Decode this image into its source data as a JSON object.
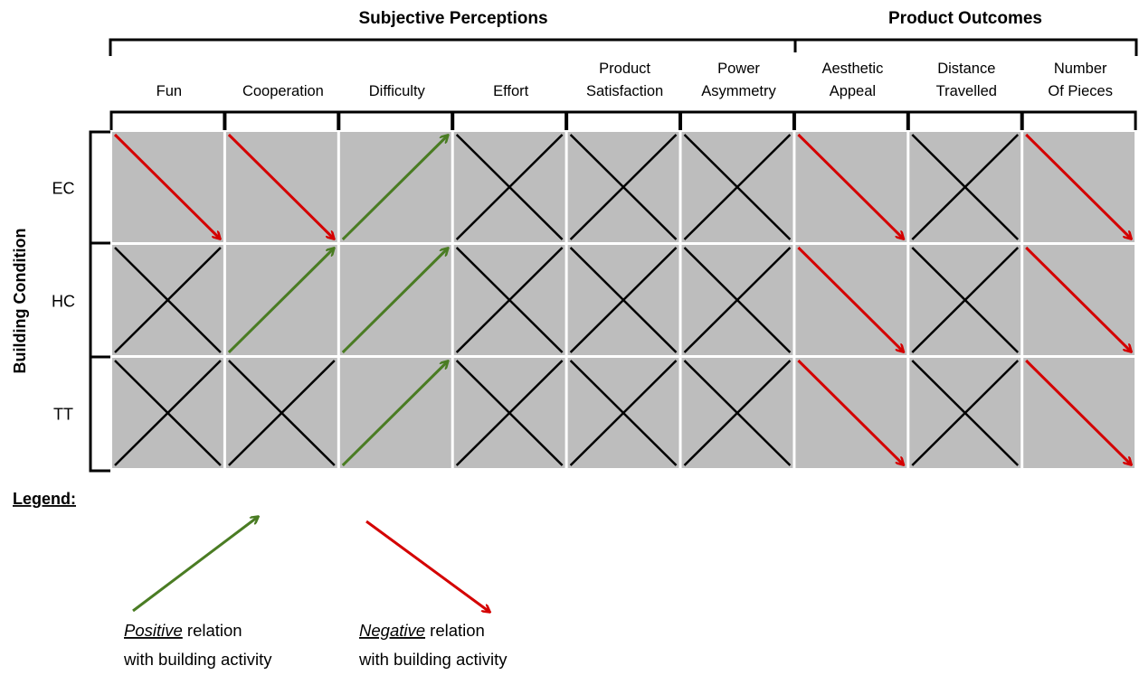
{
  "header": {
    "groups": [
      {
        "label": "Subjective Perceptions"
      },
      {
        "label": "Product Outcomes"
      }
    ],
    "columns": [
      {
        "lines": [
          "Fun"
        ]
      },
      {
        "lines": [
          "Cooperation"
        ]
      },
      {
        "lines": [
          "Difficulty"
        ]
      },
      {
        "lines": [
          "Effort"
        ]
      },
      {
        "lines": [
          "Product",
          "Satisfaction"
        ]
      },
      {
        "lines": [
          "Power",
          "Asymmetry"
        ]
      },
      {
        "lines": [
          "Aesthetic",
          "Appeal"
        ]
      },
      {
        "lines": [
          "Distance",
          "Travelled"
        ]
      },
      {
        "lines": [
          "Number",
          "Of Pieces"
        ]
      }
    ]
  },
  "rows_axis_title": "Building Condition",
  "rows": [
    {
      "label": "EC",
      "cells": [
        "negative",
        "negative",
        "positive",
        "none",
        "none",
        "none",
        "negative",
        "none",
        "negative"
      ]
    },
    {
      "label": "HC",
      "cells": [
        "none",
        "positive",
        "positive",
        "none",
        "none",
        "none",
        "negative",
        "none",
        "negative"
      ]
    },
    {
      "label": "TT",
      "cells": [
        "none",
        "none",
        "positive",
        "none",
        "none",
        "none",
        "negative",
        "none",
        "negative"
      ]
    }
  ],
  "colors": {
    "positive": "#4a7c23",
    "negative": "#d40000",
    "none": "#000000",
    "cell_fill": "#bdbdbd"
  },
  "legend": {
    "title": "Legend:",
    "positive": {
      "emphasis": "Positive",
      "rest": " relation",
      "line2": "with building activity"
    },
    "negative": {
      "emphasis": "Negative",
      "rest": " relation",
      "line2": "with building activity"
    }
  }
}
